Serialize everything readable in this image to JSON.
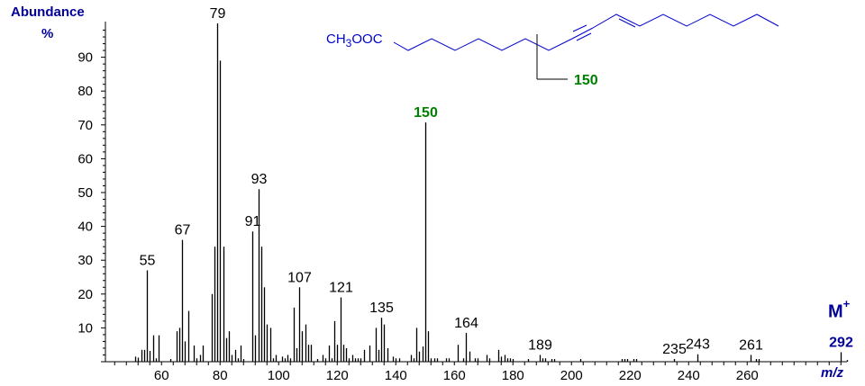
{
  "chart_data": {
    "type": "bar",
    "subtype": "mass-spectrum-stick",
    "title": "",
    "xlabel": "m/z",
    "ylabel": "Abundance %",
    "xlim": [
      42,
      296
    ],
    "ylim": [
      0,
      100
    ],
    "x_ticks": [
      60,
      80,
      100,
      120,
      140,
      160,
      180,
      200,
      220,
      240,
      260
    ],
    "y_ticks": [
      10,
      20,
      30,
      40,
      50,
      60,
      70,
      80,
      90
    ],
    "grid": false,
    "legend": null,
    "peaks": [
      {
        "mz": 51,
        "ab": 1.5
      },
      {
        "mz": 52,
        "ab": 1.2
      },
      {
        "mz": 53,
        "ab": 3.5
      },
      {
        "mz": 54,
        "ab": 3.5
      },
      {
        "mz": 55,
        "ab": 27,
        "label": "55"
      },
      {
        "mz": 56,
        "ab": 3.2
      },
      {
        "mz": 57,
        "ab": 7.8
      },
      {
        "mz": 58,
        "ab": 1
      },
      {
        "mz": 59,
        "ab": 7.8
      },
      {
        "mz": 63,
        "ab": 0.8
      },
      {
        "mz": 65,
        "ab": 9
      },
      {
        "mz": 66,
        "ab": 10
      },
      {
        "mz": 67,
        "ab": 36,
        "label": "67"
      },
      {
        "mz": 68,
        "ab": 6
      },
      {
        "mz": 69,
        "ab": 15
      },
      {
        "mz": 71,
        "ab": 4.8
      },
      {
        "mz": 72,
        "ab": 1
      },
      {
        "mz": 73,
        "ab": 2
      },
      {
        "mz": 74,
        "ab": 4.8
      },
      {
        "mz": 77,
        "ab": 20
      },
      {
        "mz": 78,
        "ab": 34
      },
      {
        "mz": 79,
        "ab": 100,
        "label": "79"
      },
      {
        "mz": 80,
        "ab": 89
      },
      {
        "mz": 81,
        "ab": 34
      },
      {
        "mz": 82,
        "ab": 7
      },
      {
        "mz": 83,
        "ab": 9
      },
      {
        "mz": 84,
        "ab": 2
      },
      {
        "mz": 85,
        "ab": 3.5
      },
      {
        "mz": 86,
        "ab": 1
      },
      {
        "mz": 87,
        "ab": 4.8
      },
      {
        "mz": 88,
        "ab": 0.8
      },
      {
        "mz": 91,
        "ab": 38.5,
        "label": "91"
      },
      {
        "mz": 92,
        "ab": 7.8
      },
      {
        "mz": 93,
        "ab": 51,
        "label": "93"
      },
      {
        "mz": 94,
        "ab": 34
      },
      {
        "mz": 95,
        "ab": 22
      },
      {
        "mz": 96,
        "ab": 11
      },
      {
        "mz": 97,
        "ab": 10
      },
      {
        "mz": 98,
        "ab": 1
      },
      {
        "mz": 99,
        "ab": 2
      },
      {
        "mz": 101,
        "ab": 1.5
      },
      {
        "mz": 102,
        "ab": 1
      },
      {
        "mz": 103,
        "ab": 2
      },
      {
        "mz": 104,
        "ab": 1
      },
      {
        "mz": 105,
        "ab": 16
      },
      {
        "mz": 106,
        "ab": 4
      },
      {
        "mz": 107,
        "ab": 22,
        "label": "107"
      },
      {
        "mz": 108,
        "ab": 9
      },
      {
        "mz": 109,
        "ab": 11
      },
      {
        "mz": 110,
        "ab": 5
      },
      {
        "mz": 111,
        "ab": 5
      },
      {
        "mz": 113,
        "ab": 0.8
      },
      {
        "mz": 115,
        "ab": 2
      },
      {
        "mz": 116,
        "ab": 1
      },
      {
        "mz": 117,
        "ab": 4.8
      },
      {
        "mz": 118,
        "ab": 1
      },
      {
        "mz": 119,
        "ab": 12
      },
      {
        "mz": 120,
        "ab": 5
      },
      {
        "mz": 121,
        "ab": 19,
        "label": "121"
      },
      {
        "mz": 122,
        "ab": 5
      },
      {
        "mz": 123,
        "ab": 4
      },
      {
        "mz": 124,
        "ab": 1
      },
      {
        "mz": 125,
        "ab": 2
      },
      {
        "mz": 126,
        "ab": 1
      },
      {
        "mz": 127,
        "ab": 1
      },
      {
        "mz": 128,
        "ab": 1
      },
      {
        "mz": 129,
        "ab": 3.5
      },
      {
        "mz": 131,
        "ab": 4.8
      },
      {
        "mz": 133,
        "ab": 10
      },
      {
        "mz": 134,
        "ab": 3.5
      },
      {
        "mz": 135,
        "ab": 13,
        "label": "135"
      },
      {
        "mz": 136,
        "ab": 11
      },
      {
        "mz": 137,
        "ab": 4
      },
      {
        "mz": 139,
        "ab": 1.5
      },
      {
        "mz": 140,
        "ab": 1
      },
      {
        "mz": 141,
        "ab": 1
      },
      {
        "mz": 145,
        "ab": 2
      },
      {
        "mz": 146,
        "ab": 1
      },
      {
        "mz": 147,
        "ab": 10
      },
      {
        "mz": 148,
        "ab": 3
      },
      {
        "mz": 149,
        "ab": 4.5
      },
      {
        "mz": 150,
        "ab": 70.7,
        "label": "150",
        "highlight": true
      },
      {
        "mz": 151,
        "ab": 9
      },
      {
        "mz": 152,
        "ab": 1
      },
      {
        "mz": 153,
        "ab": 1
      },
      {
        "mz": 154,
        "ab": 1
      },
      {
        "mz": 157,
        "ab": 1
      },
      {
        "mz": 158,
        "ab": 1
      },
      {
        "mz": 161,
        "ab": 5
      },
      {
        "mz": 163,
        "ab": 1
      },
      {
        "mz": 164,
        "ab": 8.5,
        "label": "164"
      },
      {
        "mz": 165,
        "ab": 3
      },
      {
        "mz": 167,
        "ab": 1
      },
      {
        "mz": 168,
        "ab": 1
      },
      {
        "mz": 171,
        "ab": 2
      },
      {
        "mz": 172,
        "ab": 1
      },
      {
        "mz": 175,
        "ab": 3.5
      },
      {
        "mz": 176,
        "ab": 1.5
      },
      {
        "mz": 177,
        "ab": 2
      },
      {
        "mz": 178,
        "ab": 1
      },
      {
        "mz": 179,
        "ab": 1
      },
      {
        "mz": 180,
        "ab": 0.8
      },
      {
        "mz": 185,
        "ab": 0.8
      },
      {
        "mz": 189,
        "ab": 2,
        "label": "189"
      },
      {
        "mz": 190,
        "ab": 1
      },
      {
        "mz": 191,
        "ab": 1
      },
      {
        "mz": 193,
        "ab": 0.8
      },
      {
        "mz": 194,
        "ab": 0.8
      },
      {
        "mz": 203,
        "ab": 0.8
      },
      {
        "mz": 217,
        "ab": 0.8
      },
      {
        "mz": 218,
        "ab": 0.8
      },
      {
        "mz": 219,
        "ab": 0.8
      },
      {
        "mz": 221,
        "ab": 0.8
      },
      {
        "mz": 222,
        "ab": 0.8
      },
      {
        "mz": 235,
        "ab": 0.8,
        "label": "235"
      },
      {
        "mz": 243,
        "ab": 2.2,
        "label": "243"
      },
      {
        "mz": 261,
        "ab": 2,
        "label": "261"
      },
      {
        "mz": 263,
        "ab": 0.8
      },
      {
        "mz": 264,
        "ab": 0.8
      },
      {
        "mz": 292,
        "ab": 2.8,
        "label": "292",
        "molecular_ion": true
      },
      {
        "mz": 294,
        "ab": 0.5
      }
    ],
    "annotations": [
      {
        "text": "M+",
        "near_mz": 292
      },
      {
        "text": "150",
        "type": "fragment-cleavage-label",
        "color": "#008000"
      }
    ],
    "structure": {
      "label": "CH3OOC",
      "description": "methyl ester chain with triple bond and trans double bond; cleavage marker at 150"
    }
  },
  "axis": {
    "ylabel_title": "Abundance",
    "ylabel_unit": "%",
    "xlabel": "m/z",
    "molecular_ion_label": "M",
    "molecular_ion_sup": "+"
  },
  "colors": {
    "axis": "#000000",
    "peaks": "#000000",
    "axis_titles": "#000099",
    "highlight": "#008000",
    "structure": "#0000cc",
    "molecular_ion_label": "#000099"
  },
  "structure": {
    "ester_group": "CH3OOC",
    "ester_sub": "3",
    "fragment_label": "150"
  }
}
